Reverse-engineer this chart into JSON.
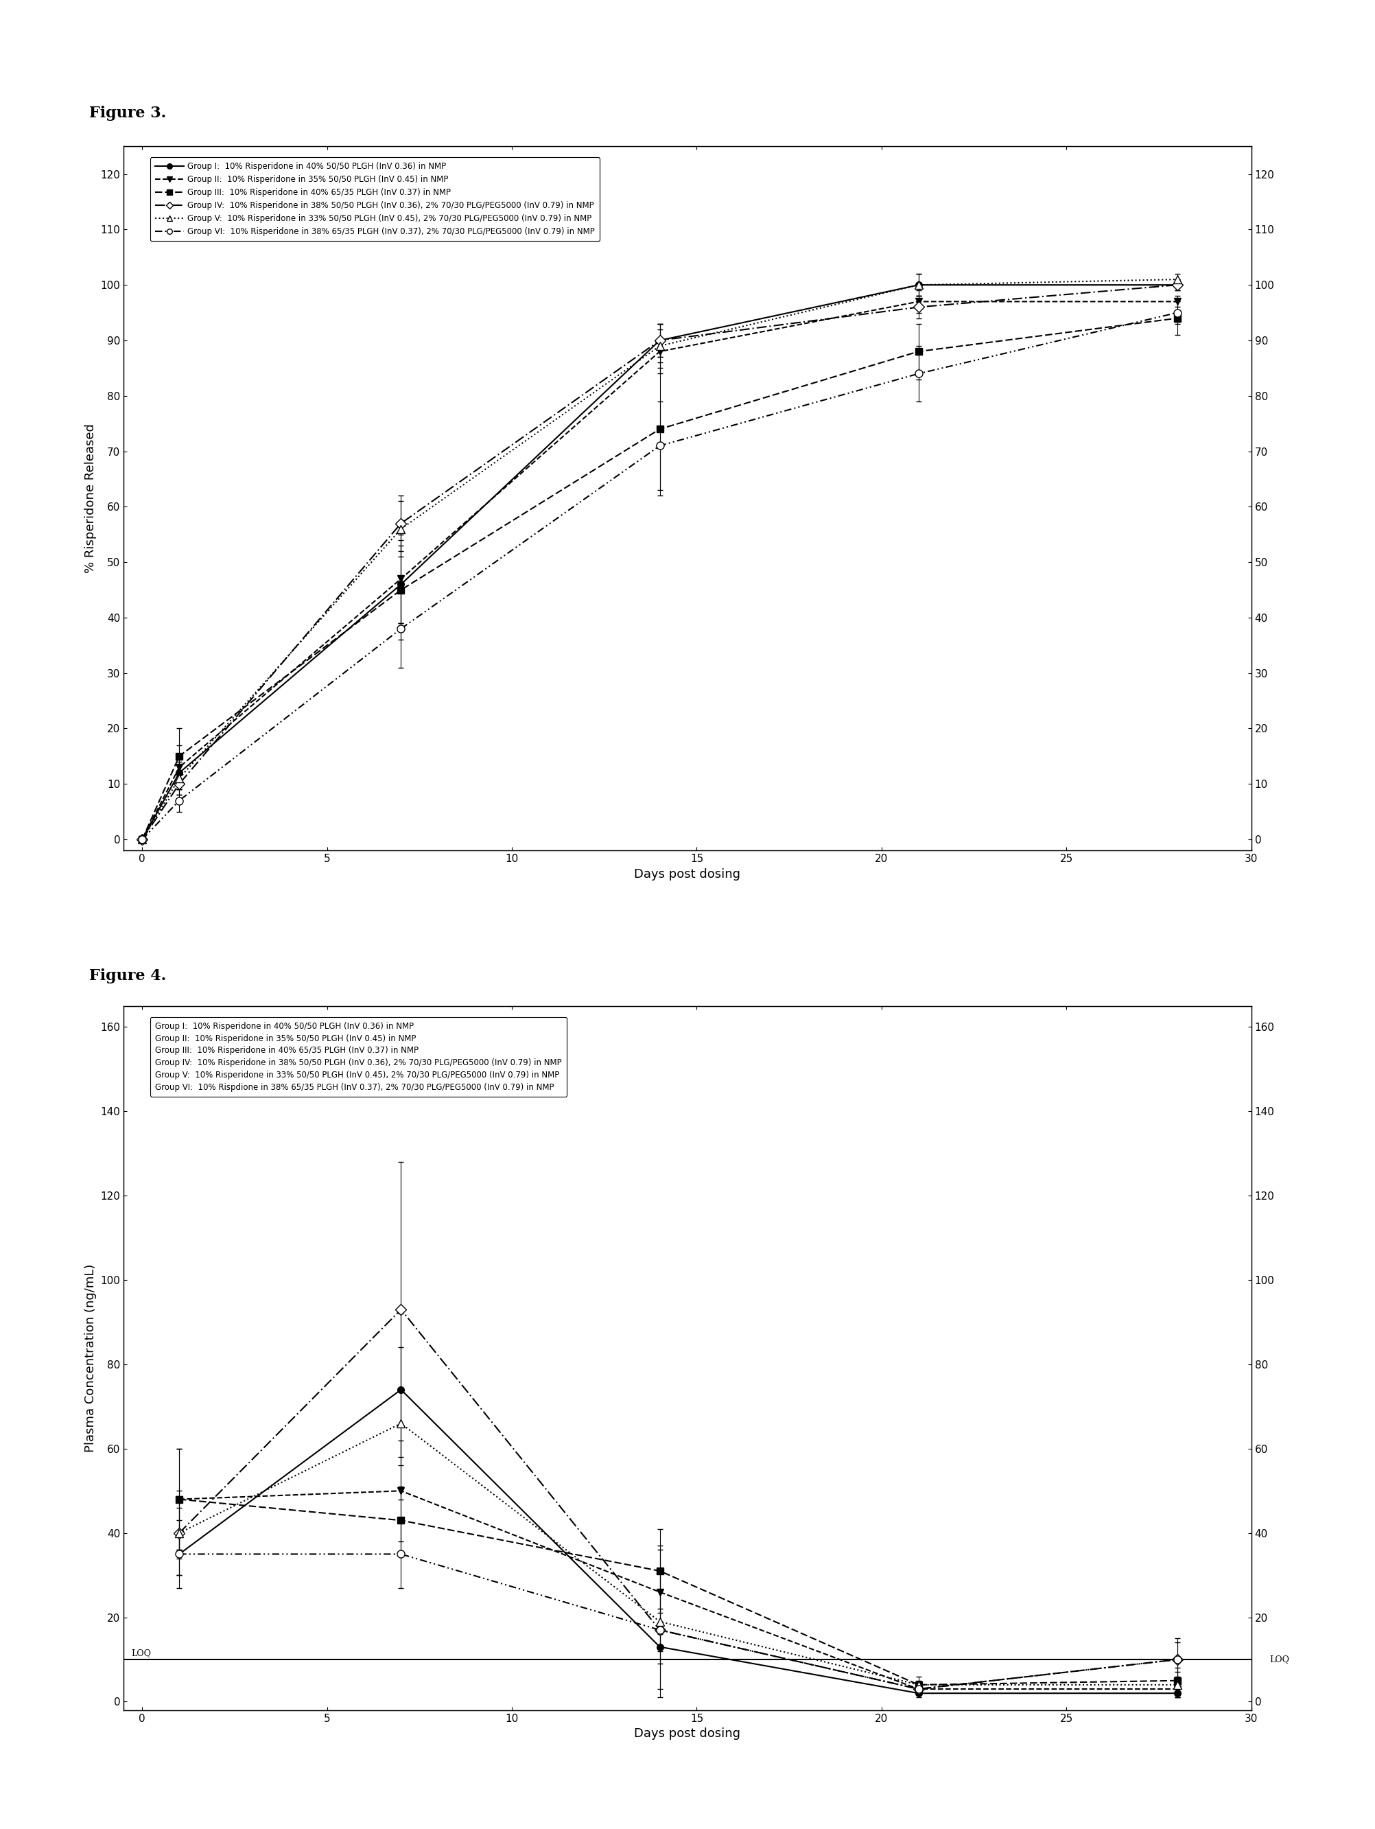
{
  "fig3_title": "Figure 3.",
  "fig4_title": "Figure 4.",
  "xlabel": "Days post dosing",
  "fig3_ylabel": "% Risperidone Released",
  "fig4_ylabel": "Plasma Concentration (ng/mL)",
  "fig3_ylim": [
    -2,
    125
  ],
  "fig3_yticks": [
    0,
    10,
    20,
    30,
    40,
    50,
    60,
    70,
    80,
    90,
    100,
    110,
    120
  ],
  "fig4_ylim": [
    -2,
    165
  ],
  "fig4_yticks": [
    0,
    20,
    40,
    60,
    80,
    100,
    120,
    140,
    160
  ],
  "xlim": [
    -0.5,
    30
  ],
  "xticks": [
    0,
    5,
    10,
    15,
    20,
    25,
    30
  ],
  "legend_labels_fig3": [
    "Group I:  10% Risperidone in 40% 50/50 PLGH (InV 0.36) in NMP",
    "Group II:  10% Risperidone in 35% 50/50 PLGH (InV 0.45) in NMP",
    "Group III:  10% Risperidone in 40% 65/35 PLGH (InV 0.37) in NMP",
    "Group IV:  10% Risperidone in 38% 50/50 PLGH (InV 0.36), 2% 70/30 PLG/PEG5000 (InV 0.79) in NMP",
    "Group V:  10% Risperidone in 33% 50/50 PLGH (InV 0.45), 2% 70/30 PLG/PEG5000 (InV 0.79) in NMP",
    "Group VI:  10% Risperidone in 38% 65/35 PLGH (InV 0.37), 2% 70/30 PLG/PEG5000 (InV 0.79) in NMP"
  ],
  "legend_labels_fig4": [
    "Group I:  10% Risperidone in 40% 50/50 PLGH (InV 0.36) in NMP",
    "Group II:  10% Risperidone in 35% 50/50 PLGH (InV 0.45) in NMP",
    "Group III:  10% Risperidone in 40% 65/35 PLGH (InV 0.37) in NMP",
    "Group IV:  10% Risperidone in 38% 50/50 PLGH (InV 0.36), 2% 70/30 PLG/PEG5000 (InV 0.79) in NMP",
    "Group V:  10% Risperidone in 33% 50/50 PLGH (InV 0.45), 2% 70/30 PLG/PEG5000 (InV 0.79) in NMP",
    "Group VI:  10% Rispdione in 38% 65/35 PLGH (InV 0.37), 2% 70/30 PLG/PEG5000 (InV 0.79) in NMP"
  ],
  "fig3_days": [
    0,
    1,
    7,
    14,
    21,
    28
  ],
  "fig3_data": {
    "g1": [
      0,
      12,
      46,
      90,
      100,
      100
    ],
    "g2": [
      0,
      13,
      47,
      88,
      97,
      97
    ],
    "g3": [
      0,
      15,
      45,
      74,
      88,
      94
    ],
    "g4": [
      0,
      10,
      57,
      90,
      96,
      100
    ],
    "g5": [
      0,
      11,
      56,
      89,
      100,
      101
    ],
    "g6": [
      0,
      7,
      38,
      71,
      84,
      95
    ]
  },
  "fig3_errors": {
    "g1": [
      0,
      3,
      7,
      3,
      2,
      1
    ],
    "g2": [
      0,
      4,
      8,
      4,
      2,
      1
    ],
    "g3": [
      0,
      5,
      9,
      12,
      5,
      3
    ],
    "g4": [
      0,
      2,
      5,
      3,
      2,
      1
    ],
    "g5": [
      0,
      3,
      5,
      4,
      2,
      1
    ],
    "g6": [
      0,
      2,
      7,
      8,
      5,
      2
    ]
  },
  "fig4_days": [
    1,
    7,
    14,
    21,
    28
  ],
  "fig4_data": {
    "g1": [
      35,
      74,
      13,
      2,
      2
    ],
    "g2": [
      48,
      50,
      26,
      3,
      3
    ],
    "g3": [
      48,
      43,
      31,
      4,
      5
    ],
    "g4": [
      40,
      93,
      17,
      3,
      10
    ],
    "g5": [
      40,
      66,
      19,
      4,
      4
    ],
    "g6": [
      35,
      35,
      17,
      3,
      10
    ]
  },
  "fig4_errors": {
    "g1": [
      5,
      18,
      4,
      1,
      1
    ],
    "g2": [
      12,
      12,
      10,
      1,
      2
    ],
    "g3": [
      12,
      8,
      10,
      1,
      3
    ],
    "g4": [
      6,
      35,
      14,
      1,
      4
    ],
    "g5": [
      10,
      18,
      18,
      2,
      3
    ],
    "g6": [
      8,
      8,
      5,
      1,
      5
    ]
  },
  "loq_value": 10,
  "background": "#ffffff"
}
